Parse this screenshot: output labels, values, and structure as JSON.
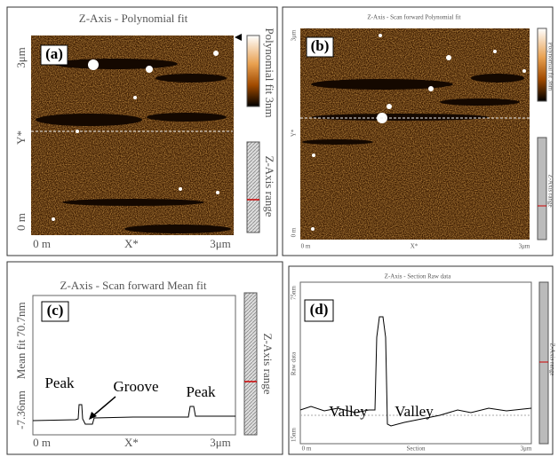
{
  "panels": [
    {
      "label": "(a)",
      "title": "Z-Axis - Polynomial fit",
      "y_top": "3μm",
      "y_name": "Y*",
      "y_bottom": "0 m",
      "x_left": "0 m",
      "x_name": "X*",
      "x_right": "3μm",
      "colorbar_label": "Polynomial fit 3nm",
      "range_label": "Z-Axis range"
    },
    {
      "label": "(b)",
      "title": "Z-Axis - Scan forward  Polynomial fit",
      "y_top": "3μm",
      "y_name": "Y*",
      "y_bottom": "0 m",
      "x_left": "0 m",
      "x_name": "X*",
      "x_right": "3μm",
      "colorbar_label": "Polynomial fit 3nm",
      "range_label": "Z-Axis range"
    },
    {
      "label": "(c)",
      "title": "Z-Axis - Scan forward  Mean fit",
      "y_top": "70.7nm",
      "y_name": "Mean fit",
      "y_bottom": "-7.36nm",
      "x_left": "0 m",
      "x_name": "X*",
      "x_right": "3μm",
      "range_label": "Z-Axis range",
      "annotations": [
        "Peak",
        "Groove",
        "Peak"
      ]
    },
    {
      "label": "(d)",
      "title": "Z-Axis - Section  Raw data",
      "y_top": "75nm",
      "y_name": "Raw data",
      "y_bottom": "15nm",
      "x_left": "0 m",
      "x_name": "Section",
      "x_right": "3μm",
      "range_label": "Z-Axis range",
      "annotations": [
        "Valley",
        "Valley"
      ]
    }
  ]
}
